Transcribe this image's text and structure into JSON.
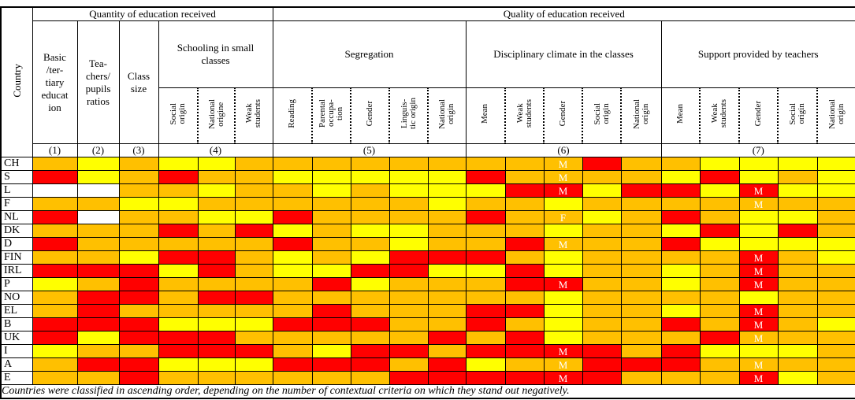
{
  "header": {
    "country_label": "Country",
    "quantity_title": "Quantity of education received",
    "quality_title": "Quality of education received",
    "col1_label": "Basic\n/ter-\ntiary\neducat\nion",
    "col2_label": "Tea-\nchers/\npupils\nratios",
    "col3_label": "Class\nsize",
    "group4_label": "Schooling in small\nclasses",
    "group5_label": "Segregation",
    "group6_label": "Disciplinary climate in the classes",
    "group7_label": "Support provided by teachers",
    "group4_sub": [
      "Social\norigin",
      "National\norigine",
      "Weak\nstudents"
    ],
    "group5_sub": [
      "Reading",
      "Parental\noccupa-\ntion",
      "Gender",
      "Linguis-\ntic origin",
      "National\norigin"
    ],
    "group6_sub": [
      "Mean",
      "Weak\nstudents",
      "Gender",
      "Social\norigin",
      "National\norigin"
    ],
    "group7_sub": [
      "Mean",
      "Weak\nstudents",
      "Gender",
      "Social\norigin",
      "National\norigin"
    ],
    "numbers": [
      "(1)",
      "(2)",
      "(3)",
      "(4)",
      "(5)",
      "(6)",
      "(7)"
    ]
  },
  "colors": {
    "Y": "#FFFF00",
    "O": "#FFC000",
    "R": "#FF0000",
    "W": "#FFFFFF"
  },
  "color_names": {
    "Y": "yellow",
    "O": "orange",
    "R": "red",
    "W": "white"
  },
  "column_ids": [
    "basic-tertiary-education",
    "teachers-pupils-ratios",
    "class-size",
    "small-classes-social-origin",
    "small-classes-national-origine",
    "small-classes-weak-students",
    "segregation-reading",
    "segregation-parental-occupation",
    "segregation-gender",
    "segregation-linguistic-origin",
    "segregation-national-origin",
    "discipline-mean",
    "discipline-weak-students",
    "discipline-gender",
    "discipline-social-origin",
    "discipline-national-origin",
    "support-mean",
    "support-weak-students",
    "support-gender",
    "support-social-origin",
    "support-national-origin"
  ],
  "rows": [
    {
      "country": "CH",
      "cells": [
        "O",
        "Y",
        "O",
        "Y",
        "Y",
        "O",
        "O",
        "O",
        "O",
        "O",
        "O",
        "O",
        "O",
        "O:M",
        "R",
        "O",
        "O",
        "Y",
        "Y",
        "Y",
        "Y"
      ]
    },
    {
      "country": "S",
      "cells": [
        "R",
        "Y",
        "O",
        "R",
        "O",
        "O",
        "Y",
        "Y",
        "Y",
        "Y",
        "Y",
        "R",
        "O",
        "O:M",
        "O",
        "O",
        "Y",
        "R",
        "Y",
        "O",
        "Y"
      ]
    },
    {
      "country": "L",
      "cells": [
        "W",
        "W",
        "O",
        "O",
        "Y",
        "O",
        "O",
        "Y",
        "O",
        "Y",
        "Y",
        "Y",
        "R",
        "R:M",
        "Y",
        "R",
        "R",
        "Y",
        "R:M",
        "Y",
        "Y"
      ]
    },
    {
      "country": "F",
      "cells": [
        "O",
        "O",
        "Y",
        "Y",
        "O",
        "O",
        "O",
        "O",
        "O",
        "O",
        "Y",
        "O",
        "O",
        "Y",
        "O",
        "O",
        "O",
        "O",
        "O:M",
        "O",
        "O"
      ]
    },
    {
      "country": "NL",
      "cells": [
        "R",
        "W",
        "O",
        "O",
        "Y",
        "Y",
        "R",
        "O",
        "O",
        "O",
        "O",
        "R",
        "O",
        "O:F",
        "Y",
        "O",
        "R",
        "O",
        "Y",
        "Y",
        "O"
      ]
    },
    {
      "country": "DK",
      "cells": [
        "O",
        "O",
        "O",
        "R",
        "O",
        "R",
        "Y",
        "O",
        "Y",
        "Y",
        "O",
        "O",
        "O",
        "Y",
        "O",
        "O",
        "Y",
        "R",
        "Y",
        "R",
        "O"
      ]
    },
    {
      "country": "D",
      "cells": [
        "R",
        "O",
        "O",
        "O",
        "O",
        "O",
        "R",
        "O",
        "O",
        "Y",
        "O",
        "O",
        "R",
        "O:M",
        "O",
        "O",
        "R",
        "Y",
        "Y",
        "Y",
        "Y"
      ]
    },
    {
      "country": "FIN",
      "cells": [
        "O",
        "O",
        "Y",
        "R",
        "R",
        "O",
        "Y",
        "O",
        "Y",
        "R",
        "R",
        "R",
        "O",
        "Y",
        "O",
        "O",
        "O",
        "O",
        "R:M",
        "O",
        "Y"
      ]
    },
    {
      "country": "IRL",
      "cells": [
        "R",
        "R",
        "R",
        "Y",
        "R",
        "O",
        "Y",
        "Y",
        "R",
        "R",
        "Y",
        "Y",
        "R",
        "Y",
        "O",
        "O",
        "Y",
        "O",
        "R:M",
        "O",
        "O"
      ]
    },
    {
      "country": "P",
      "cells": [
        "Y",
        "O",
        "R",
        "O",
        "O",
        "O",
        "O",
        "R",
        "Y",
        "O",
        "O",
        "O",
        "R",
        "R:M",
        "O",
        "O",
        "Y",
        "O",
        "R:M",
        "O",
        "O"
      ]
    },
    {
      "country": "NO",
      "cells": [
        "O",
        "R",
        "R",
        "O",
        "R",
        "R",
        "O",
        "O",
        "O",
        "O",
        "O",
        "O",
        "O",
        "Y",
        "O",
        "O",
        "O",
        "O",
        "Y",
        "O",
        "O"
      ]
    },
    {
      "country": "EL",
      "cells": [
        "O",
        "R",
        "O",
        "O",
        "O",
        "O",
        "O",
        "R",
        "O",
        "O",
        "O",
        "R",
        "R",
        "Y",
        "O",
        "O",
        "Y",
        "O",
        "R:M",
        "O",
        "O"
      ]
    },
    {
      "country": "B",
      "cells": [
        "R",
        "R",
        "R",
        "Y",
        "Y",
        "Y",
        "R",
        "R",
        "R",
        "O",
        "O",
        "R",
        "O",
        "Y",
        "O",
        "O",
        "R",
        "O",
        "R:M",
        "O",
        "Y"
      ]
    },
    {
      "country": "UK",
      "cells": [
        "R",
        "Y",
        "R",
        "R",
        "R",
        "O",
        "O",
        "O",
        "O",
        "O",
        "R",
        "O",
        "R",
        "Y",
        "O",
        "O",
        "O",
        "R",
        "O:M",
        "O",
        "O"
      ]
    },
    {
      "country": "I",
      "cells": [
        "Y",
        "O",
        "O",
        "R",
        "R",
        "R",
        "O",
        "Y",
        "R",
        "R",
        "O",
        "R",
        "R",
        "R:M",
        "R",
        "O",
        "R",
        "Y",
        "Y",
        "Y",
        "O"
      ]
    },
    {
      "country": "A",
      "cells": [
        "O",
        "R",
        "R",
        "Y",
        "Y",
        "Y",
        "R",
        "R",
        "R",
        "O",
        "R",
        "Y",
        "O",
        "O:M",
        "R",
        "R",
        "R",
        "O",
        "O:M",
        "O",
        "O"
      ]
    },
    {
      "country": "E",
      "cells": [
        "O",
        "O",
        "R",
        "O",
        "O",
        "O",
        "O",
        "O",
        "O",
        "R",
        "R",
        "R",
        "R",
        "R:M",
        "R",
        "O",
        "O",
        "O",
        "R:M",
        "Y",
        "O"
      ]
    }
  ],
  "footer": "Countries were classified in ascending order, depending on the number of contextual criteria on which they stand out negatively."
}
